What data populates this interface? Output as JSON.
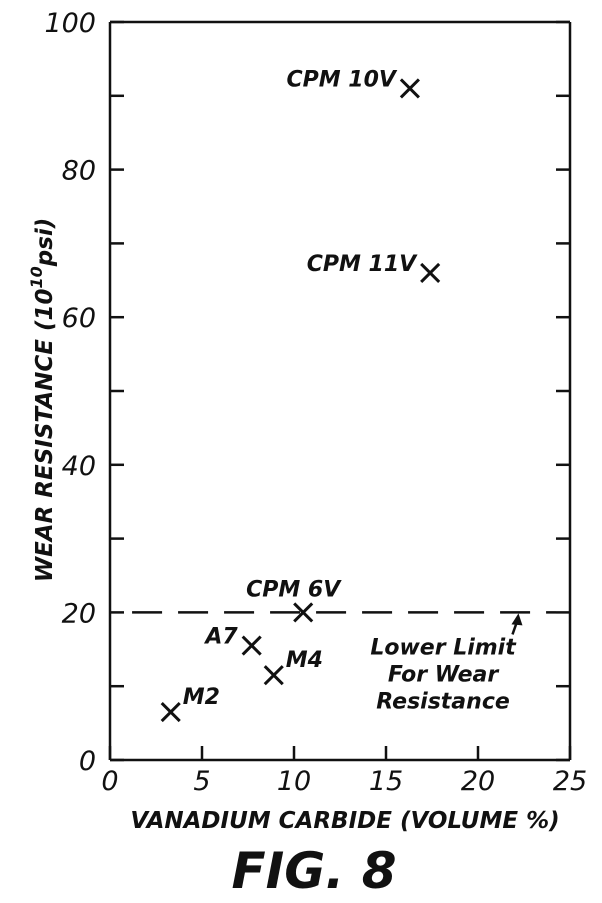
{
  "chart_data": {
    "type": "scatter",
    "title": "",
    "xlabel": "VANADIUM CARBIDE (VOLUME %)",
    "ylabel": "WEAR RESISTANCE (10",
    "ylabel_superscript": "10",
    "ylabel_tail": "psi)",
    "xlim": [
      0,
      25
    ],
    "ylim": [
      0,
      100
    ],
    "x_ticks": [
      0,
      5,
      10,
      15,
      20,
      25
    ],
    "y_ticks": [
      0,
      20,
      40,
      60,
      80,
      100
    ],
    "x_tick_labels": [
      "0",
      "5",
      "10",
      "15",
      "20",
      "25"
    ],
    "y_tick_labels": [
      "0",
      "20",
      "40",
      "60",
      "80",
      "100"
    ],
    "grid": false,
    "points": [
      {
        "label": "CPM 10V",
        "x": 16.3,
        "y": 91,
        "label_side": "left"
      },
      {
        "label": "CPM 11V",
        "x": 17.4,
        "y": 66,
        "label_side": "left"
      },
      {
        "label": "CPM 6V",
        "x": 10.5,
        "y": 20,
        "label_side": "above"
      },
      {
        "label": "A7",
        "x": 7.7,
        "y": 15.5,
        "label_side": "left"
      },
      {
        "label": "M4",
        "x": 8.9,
        "y": 11.5,
        "label_side": "right"
      },
      {
        "label": "M2",
        "x": 3.3,
        "y": 6.5,
        "label_side": "right"
      }
    ],
    "reference_line": {
      "y": 20,
      "style": "dashed"
    },
    "annotation": {
      "lines": [
        "Lower Limit",
        "For Wear",
        "Resistance"
      ],
      "arrow_to": {
        "x": 22.2,
        "y": 20
      }
    }
  },
  "figure_caption": "FIG. 8"
}
